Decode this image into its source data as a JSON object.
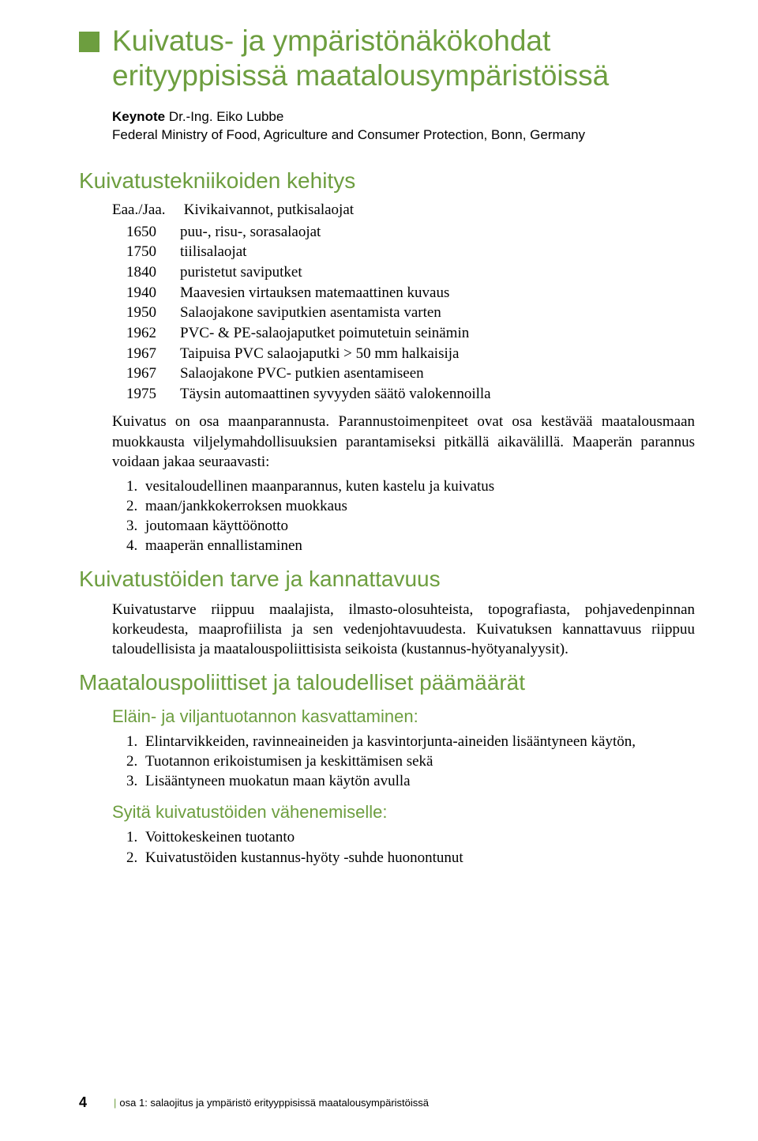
{
  "colors": {
    "accent": "#6d9e3f",
    "text": "#000000",
    "background": "#ffffff"
  },
  "typography": {
    "title_fontsize": 37,
    "section_fontsize": 28,
    "subsection_fontsize": 22,
    "body_fontsize": 19,
    "keynote_fontsize": 17,
    "footer_fontsize": 13
  },
  "title": "Kuivatus- ja ympäristönäkökohdat erityyppisissä maatalousympäristöissä",
  "keynote": {
    "label": "Keynote",
    "author": "Dr.-Ing. Eiko Lubbe",
    "affiliation": "Federal Ministry of Food, Agriculture and Consumer Protection, Bonn, Germany"
  },
  "s1": {
    "title": "Kuivatustekniikoiden kehitys",
    "timeline_head_year": "Eaa./Jaa.",
    "timeline_head_desc": "Kivikaivannot, putkisalaojat",
    "timeline": [
      {
        "year": "1650",
        "desc": "puu-, risu-, sorasalaojat"
      },
      {
        "year": "1750",
        "desc": "tiilisalaojat"
      },
      {
        "year": "1840",
        "desc": "puristetut saviputket"
      },
      {
        "year": "1940",
        "desc": "Maavesien virtauksen matemaattinen kuvaus"
      },
      {
        "year": "1950",
        "desc": "Salaojakone saviputkien asentamista varten"
      },
      {
        "year": "1962",
        "desc": "PVC- & PE-salaojaputket poimutetuin seinämin"
      },
      {
        "year": "1967",
        "desc": "Taipuisa PVC salaojaputki > 50 mm halkaisija"
      },
      {
        "year": "1967",
        "desc": "Salaojakone PVC- putkien asentamiseen"
      },
      {
        "year": "1975",
        "desc": "Täysin automaattinen syvyyden säätö valokennoilla"
      }
    ],
    "para": "Kuivatus on osa maanparannusta. Parannustoimenpiteet ovat osa kestävää maatalousmaan muokkausta viljelymahdollisuuksien parantamiseksi pitkällä aikavälillä. Maaperän parannus voidaan jakaa seuraavasti:",
    "list": [
      "vesitaloudellinen maanparannus, kuten kastelu ja kuivatus",
      "maan/jankkokerroksen muokkaus",
      "joutomaan käyttöönotto",
      "maaperän ennallistaminen"
    ]
  },
  "s2": {
    "title": "Kuivatustöiden tarve ja kannattavuus",
    "para": "Kuivatustarve riippuu maalajista, ilmasto-olosuhteista, topografiasta, pohjavedenpinnan korkeudesta, maaprofiilista ja sen vedenjohtavuudesta. Kuivatuksen kannattavuus riippuu taloudellisista ja maatalouspoliittisista seikoista (kustannus-hyötyanalyysit)."
  },
  "s3": {
    "title": "Maatalouspoliittiset ja taloudelliset päämäärät",
    "sub1": {
      "title": "Eläin- ja viljantuotannon kasvattaminen:",
      "list": [
        "Elintarvikkeiden, ravinneaineiden ja kasvintorjunta-aineiden lisääntyneen käytön,",
        "Tuotannon erikoistumisen ja keskittämisen sekä",
        "Lisääntyneen muokatun maan käytön avulla"
      ]
    },
    "sub2": {
      "title": "Syitä kuivatustöiden vähenemiselle:",
      "list": [
        "Voittokeskeinen tuotanto",
        "Kuivatustöiden kustannus-hyöty -suhde huonontunut"
      ]
    }
  },
  "footer": {
    "page": "4",
    "part": "osa 1: salaojitus ja ympäristö erityyppisissä maatalousympäristöissä"
  }
}
